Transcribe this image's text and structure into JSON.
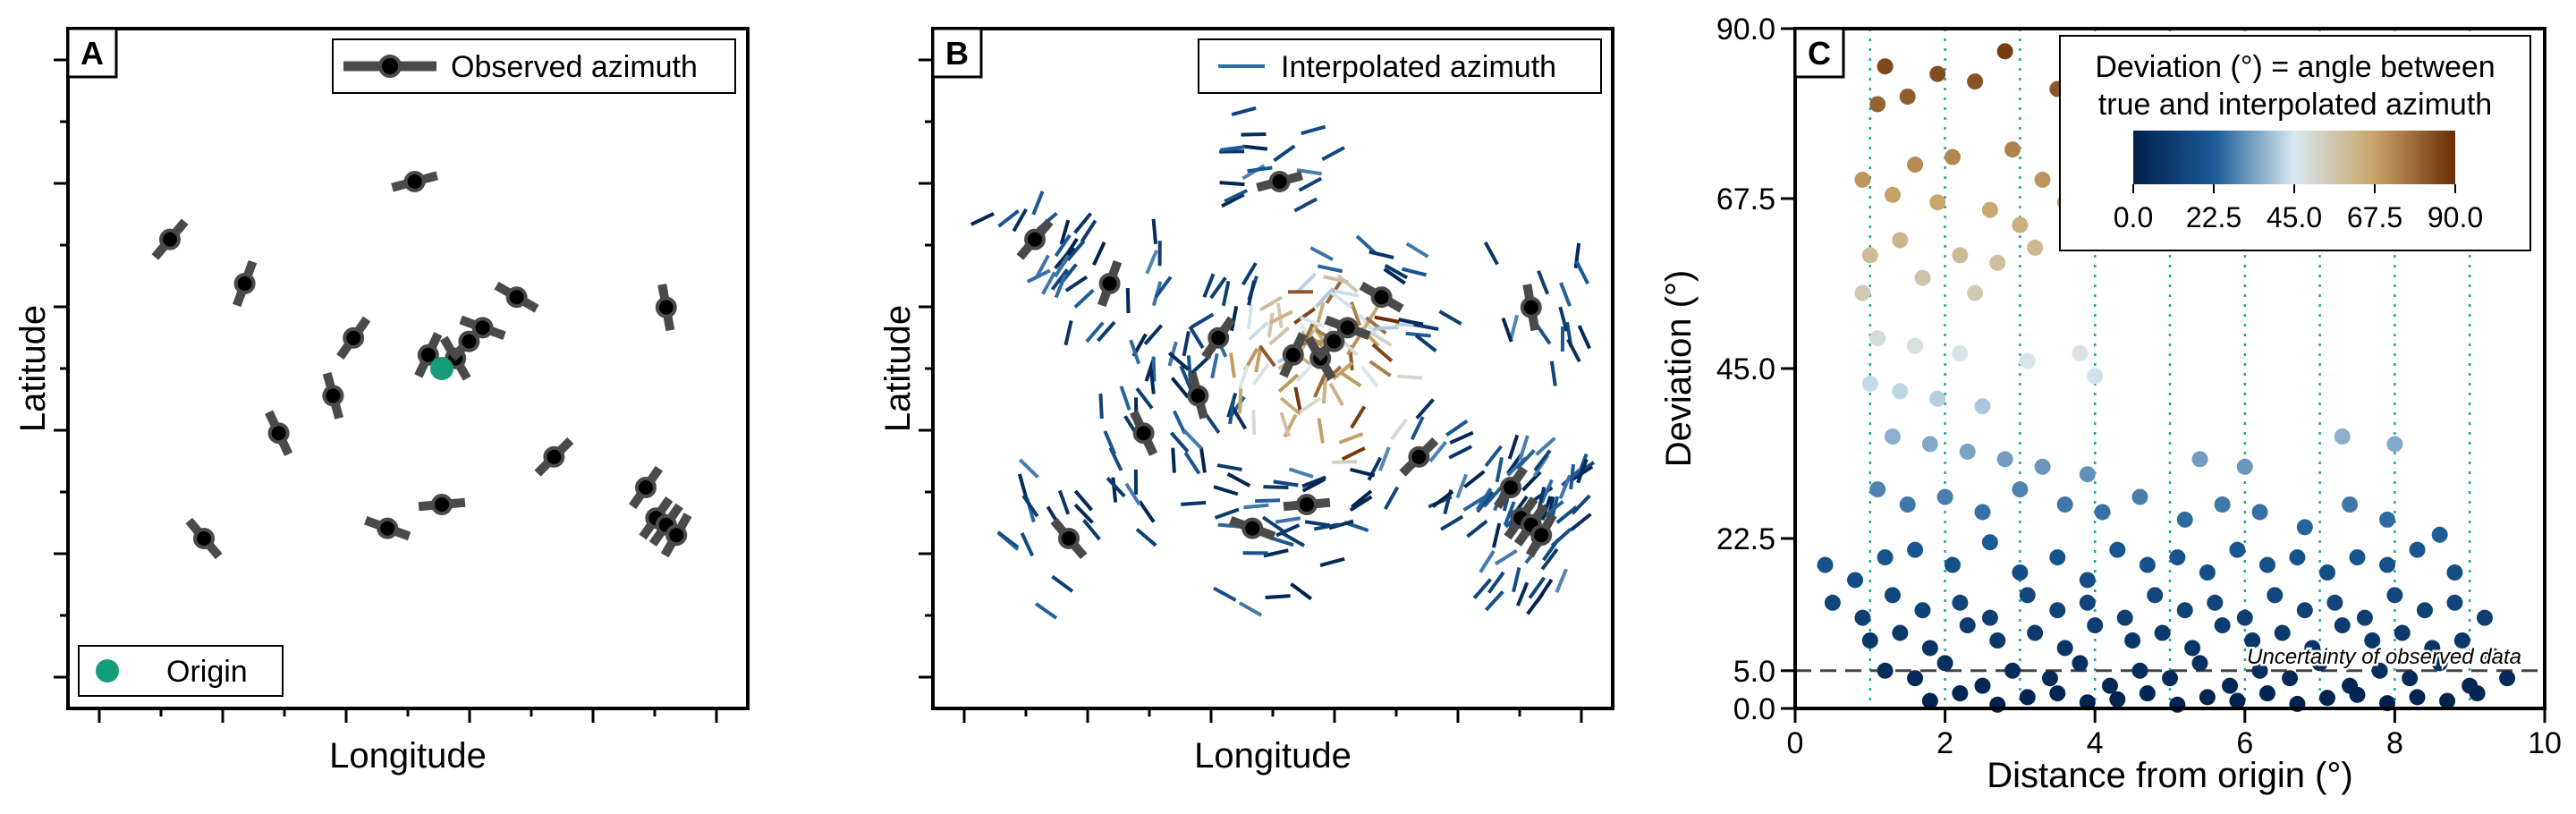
{
  "chart_data": [
    {
      "panel": "A",
      "type": "scatter",
      "subtype": "orientation-bars",
      "xlabel": "Longitude",
      "ylabel": "Latitude",
      "tick_labels_shown": false,
      "xlim": [
        0,
        100
      ],
      "ylim": [
        0,
        100
      ],
      "legend": {
        "location": "upper right",
        "entries": [
          "Observed azimuth"
        ]
      },
      "legend2": {
        "location": "lower left",
        "entries": [
          "Origin"
        ]
      },
      "colors": {
        "bar": "#4a4a4a",
        "point": "#000000",
        "origin": "#169c7a"
      },
      "origin": {
        "x": 55,
        "y": 50
      },
      "observations": [
        {
          "x": 51,
          "y": 77.5,
          "azimuth": 75
        },
        {
          "x": 15,
          "y": 69,
          "azimuth": 40
        },
        {
          "x": 26,
          "y": 62.5,
          "azimuth": 20
        },
        {
          "x": 42,
          "y": 54.5,
          "azimuth": 35
        },
        {
          "x": 53,
          "y": 52,
          "azimuth": 25
        },
        {
          "x": 57,
          "y": 51.5,
          "azimuth": -30
        },
        {
          "x": 59,
          "y": 54,
          "azimuth": 45
        },
        {
          "x": 61,
          "y": 56,
          "azimuth": -70
        },
        {
          "x": 66,
          "y": 60.5,
          "azimuth": -60
        },
        {
          "x": 88,
          "y": 59,
          "azimuth": -10
        },
        {
          "x": 39,
          "y": 46,
          "azimuth": -15
        },
        {
          "x": 31,
          "y": 40.5,
          "azimuth": -25
        },
        {
          "x": 71.5,
          "y": 37,
          "azimuth": 45
        },
        {
          "x": 85,
          "y": 32.5,
          "azimuth": 35
        },
        {
          "x": 86.5,
          "y": 28,
          "azimuth": 35
        },
        {
          "x": 88,
          "y": 27,
          "azimuth": 35
        },
        {
          "x": 89.5,
          "y": 25.5,
          "azimuth": 30
        },
        {
          "x": 55,
          "y": 30,
          "azimuth": 85
        },
        {
          "x": 47,
          "y": 26.5,
          "azimuth": -70
        },
        {
          "x": 20,
          "y": 25,
          "azimuth": -40
        }
      ]
    },
    {
      "panel": "B",
      "type": "scatter",
      "subtype": "orientation-field",
      "xlabel": "Longitude",
      "ylabel": "Latitude",
      "tick_labels_shown": false,
      "xlim": [
        0,
        100
      ],
      "ylim": [
        0,
        100
      ],
      "legend": {
        "location": "upper right",
        "entries": [
          "Interpolated azimuth"
        ]
      },
      "colormap": "deviation (dark blue 0° → light 45° → brown 90°)"
    },
    {
      "panel": "C",
      "type": "scatter",
      "xlabel": "Distance from origin (°)",
      "ylabel": "Deviation (°)",
      "xlim": [
        0,
        10
      ],
      "ylim": [
        0,
        90
      ],
      "xticks": [
        0,
        2,
        4,
        6,
        8,
        10
      ],
      "yticks": [
        0.0,
        5.0,
        22.5,
        45.0,
        67.5,
        90.0
      ],
      "ytick_labels": [
        "0.0",
        "5.0",
        "22.5",
        "45.0",
        "67.5",
        "90.0"
      ],
      "grid": "vertical dotted lines at x = 1..9",
      "grid_x": [
        1,
        2,
        3,
        4,
        5,
        6,
        7,
        8,
        9
      ],
      "hline": {
        "y": 5.0,
        "style": "dashed",
        "label": "Uncertainty of observed data"
      },
      "colorbar": {
        "title_line1": "Deviation (°) = angle between",
        "title_line2": "true and interpolated azimuth",
        "ticks": [
          "0.0",
          "22.5",
          "45.0",
          "67.5",
          "90.0"
        ],
        "range": [
          0,
          90
        ],
        "colors": [
          "#00204c",
          "#1a5a96",
          "#d7e8f0",
          "#c8a46a",
          "#6a2d05"
        ],
        "location": "upper right"
      },
      "points": [
        [
          1.2,
          85
        ],
        [
          1.9,
          84
        ],
        [
          2.8,
          87
        ],
        [
          2.4,
          83
        ],
        [
          1.5,
          81
        ],
        [
          3.5,
          82
        ],
        [
          1.1,
          80
        ],
        [
          0.9,
          70
        ],
        [
          1.6,
          72
        ],
        [
          2.1,
          73
        ],
        [
          2.9,
          74
        ],
        [
          3.3,
          70
        ],
        [
          3.7,
          72
        ],
        [
          1.3,
          68
        ],
        [
          1.9,
          67
        ],
        [
          2.6,
          66
        ],
        [
          3.0,
          64
        ],
        [
          3.6,
          67
        ],
        [
          4.0,
          65
        ],
        [
          1.0,
          60
        ],
        [
          1.4,
          62
        ],
        [
          2.2,
          60
        ],
        [
          2.7,
          59
        ],
        [
          0.9,
          55
        ],
        [
          3.2,
          61
        ],
        [
          1.7,
          57
        ],
        [
          2.4,
          55
        ],
        [
          1.1,
          49
        ],
        [
          1.6,
          48
        ],
        [
          2.2,
          47
        ],
        [
          3.1,
          46
        ],
        [
          3.8,
          47
        ],
        [
          1.0,
          43
        ],
        [
          1.4,
          42
        ],
        [
          1.9,
          41
        ],
        [
          2.5,
          40
        ],
        [
          4.0,
          44
        ],
        [
          1.3,
          36
        ],
        [
          1.8,
          35
        ],
        [
          2.3,
          34
        ],
        [
          2.8,
          33
        ],
        [
          3.3,
          32
        ],
        [
          3.9,
          31
        ],
        [
          5.4,
          33
        ],
        [
          6.0,
          32
        ],
        [
          7.3,
          36
        ],
        [
          8.0,
          35
        ],
        [
          1.1,
          29
        ],
        [
          1.5,
          27
        ],
        [
          2.0,
          28
        ],
        [
          2.5,
          26
        ],
        [
          3.0,
          29
        ],
        [
          3.6,
          27
        ],
        [
          4.1,
          26
        ],
        [
          4.6,
          28
        ],
        [
          5.2,
          25
        ],
        [
          5.7,
          27
        ],
        [
          6.2,
          26
        ],
        [
          6.8,
          24
        ],
        [
          7.4,
          27
        ],
        [
          7.9,
          25
        ],
        [
          8.6,
          23
        ],
        [
          0.4,
          19
        ],
        [
          0.8,
          17
        ],
        [
          1.2,
          20
        ],
        [
          1.6,
          21
        ],
        [
          2.1,
          19
        ],
        [
          2.6,
          22
        ],
        [
          3.0,
          18
        ],
        [
          3.5,
          20
        ],
        [
          3.9,
          17
        ],
        [
          4.3,
          21
        ],
        [
          4.7,
          19
        ],
        [
          5.1,
          20
        ],
        [
          5.5,
          18
        ],
        [
          5.9,
          21
        ],
        [
          6.3,
          19
        ],
        [
          6.7,
          20
        ],
        [
          7.1,
          18
        ],
        [
          7.5,
          20
        ],
        [
          7.9,
          19
        ],
        [
          8.3,
          21
        ],
        [
          8.8,
          18
        ],
        [
          0.5,
          14
        ],
        [
          0.9,
          12
        ],
        [
          1.3,
          15
        ],
        [
          1.7,
          13
        ],
        [
          2.2,
          14
        ],
        [
          2.6,
          12
        ],
        [
          3.1,
          15
        ],
        [
          3.5,
          13
        ],
        [
          3.9,
          14
        ],
        [
          4.4,
          12
        ],
        [
          4.8,
          15
        ],
        [
          5.2,
          13
        ],
        [
          5.6,
          14
        ],
        [
          6.0,
          12
        ],
        [
          6.4,
          15
        ],
        [
          6.8,
          13
        ],
        [
          7.2,
          14
        ],
        [
          7.6,
          12
        ],
        [
          8.0,
          15
        ],
        [
          8.4,
          13
        ],
        [
          8.8,
          14
        ],
        [
          9.2,
          12
        ],
        [
          1.0,
          9
        ],
        [
          1.4,
          10
        ],
        [
          1.8,
          8
        ],
        [
          2.3,
          11
        ],
        [
          2.7,
          9
        ],
        [
          3.2,
          10
        ],
        [
          3.6,
          8
        ],
        [
          4.0,
          11
        ],
        [
          4.5,
          9
        ],
        [
          4.9,
          10
        ],
        [
          5.3,
          8
        ],
        [
          5.7,
          11
        ],
        [
          6.1,
          9
        ],
        [
          6.5,
          10
        ],
        [
          6.9,
          8
        ],
        [
          7.3,
          11
        ],
        [
          7.7,
          9
        ],
        [
          8.1,
          10
        ],
        [
          8.5,
          8
        ],
        [
          8.9,
          9
        ],
        [
          9.3,
          7
        ],
        [
          1.2,
          5
        ],
        [
          1.6,
          4
        ],
        [
          2.0,
          6
        ],
        [
          2.5,
          3
        ],
        [
          2.9,
          5
        ],
        [
          3.4,
          4
        ],
        [
          3.8,
          6
        ],
        [
          4.2,
          3
        ],
        [
          4.6,
          5
        ],
        [
          5.0,
          4
        ],
        [
          5.4,
          6
        ],
        [
          5.8,
          3
        ],
        [
          6.2,
          5
        ],
        [
          6.6,
          4
        ],
        [
          7.0,
          6
        ],
        [
          7.4,
          3
        ],
        [
          7.8,
          5
        ],
        [
          8.2,
          4
        ],
        [
          8.6,
          6
        ],
        [
          9.0,
          3
        ],
        [
          9.5,
          4
        ],
        [
          1.8,
          1
        ],
        [
          2.2,
          2
        ],
        [
          2.7,
          0.5
        ],
        [
          3.1,
          1.5
        ],
        [
          3.5,
          2
        ],
        [
          3.9,
          0.8
        ],
        [
          4.3,
          1.2
        ],
        [
          4.7,
          2
        ],
        [
          5.1,
          0.5
        ],
        [
          5.5,
          1.5
        ],
        [
          5.9,
          1
        ],
        [
          6.3,
          2
        ],
        [
          6.7,
          0.6
        ],
        [
          7.1,
          1.4
        ],
        [
          7.5,
          1.8
        ],
        [
          7.9,
          0.7
        ],
        [
          8.3,
          1.5
        ],
        [
          8.7,
          1
        ],
        [
          9.1,
          2
        ]
      ]
    }
  ],
  "panels": {
    "A": {
      "letter": "A",
      "legend_label": "Observed azimuth",
      "origin_label": "Origin"
    },
    "B": {
      "letter": "B",
      "legend_label": "Interpolated azimuth"
    },
    "C": {
      "letter": "C"
    }
  }
}
